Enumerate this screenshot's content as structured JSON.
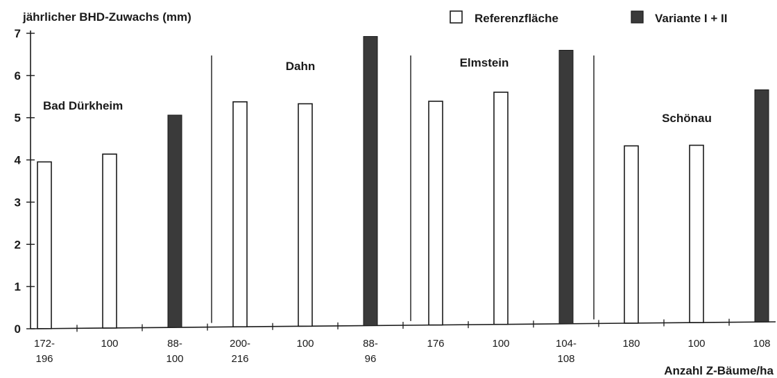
{
  "chart_data": {
    "type": "bar",
    "ylabel": "jährlicher BHD-Zuwachs (mm)",
    "xlabel": "Anzahl Z-Bäume/ha",
    "ylim": [
      0,
      7
    ],
    "yticks": [
      0,
      1,
      2,
      3,
      4,
      5,
      6,
      7
    ],
    "legend": {
      "placement": "top-right",
      "entries": [
        {
          "name": "Referenzfläche",
          "color": "#ffffff"
        },
        {
          "name": "Variante I + II",
          "color": "#3a3a3a"
        }
      ]
    },
    "sites": [
      "Bad Dürkheim",
      "Dahn",
      "Elmstein",
      "Schönau"
    ],
    "bars": [
      {
        "category": [
          "172-",
          "196"
        ],
        "value": 3.95,
        "group": 0,
        "site": 0
      },
      {
        "category": [
          "100"
        ],
        "value": 4.12,
        "group": 0,
        "site": 0
      },
      {
        "category": [
          "88-",
          "100"
        ],
        "value": 5.03,
        "group": 1,
        "site": 0
      },
      {
        "category": [
          "200-",
          "216"
        ],
        "value": 5.33,
        "group": 0,
        "site": 1
      },
      {
        "category": [
          "100"
        ],
        "value": 5.27,
        "group": 0,
        "site": 1
      },
      {
        "category": [
          "88-",
          "96"
        ],
        "value": 6.85,
        "group": 1,
        "site": 1
      },
      {
        "category": [
          "176"
        ],
        "value": 5.3,
        "group": 0,
        "site": 2
      },
      {
        "category": [
          "100"
        ],
        "value": 5.5,
        "group": 0,
        "site": 2
      },
      {
        "category": [
          "104-",
          "108"
        ],
        "value": 6.48,
        "group": 1,
        "site": 2
      },
      {
        "category": [
          "180"
        ],
        "value": 4.2,
        "group": 0,
        "site": 3
      },
      {
        "category": [
          "100"
        ],
        "value": 4.2,
        "group": 0,
        "site": 3
      },
      {
        "category": [
          "108"
        ],
        "value": 5.5,
        "group": 1,
        "site": 3
      }
    ]
  }
}
